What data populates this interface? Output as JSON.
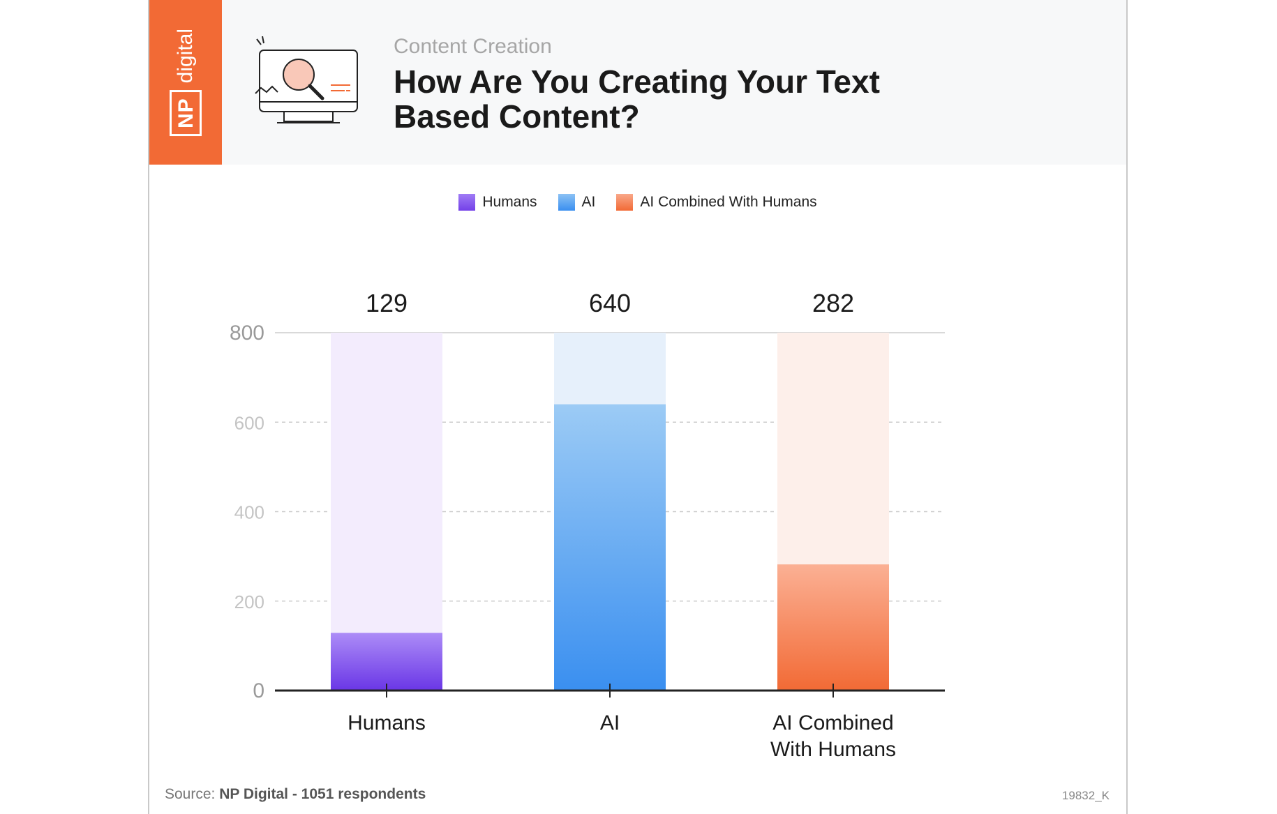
{
  "header": {
    "brand_np": "NP",
    "brand_word": "digital",
    "subtitle": "Content Creation",
    "title": "How Are You Creating Your Text Based Content?"
  },
  "legend": [
    {
      "label": "Humans",
      "icon": "purple-square-icon"
    },
    {
      "label": "AI",
      "icon": "blue-square-icon"
    },
    {
      "label": "AI Combined With Humans",
      "icon": "orange-square-icon"
    }
  ],
  "chart_data": {
    "type": "bar",
    "categories": [
      "Humans",
      "AI",
      "AI Combined With Humans"
    ],
    "values": [
      129,
      640,
      282
    ],
    "ylim": [
      0,
      800
    ],
    "yticks": [
      0,
      200,
      400,
      600,
      800
    ],
    "colors": [
      "#7b4df0",
      "#3a8ff0",
      "#f26a35"
    ],
    "grid": true,
    "legend_position": "top-center"
  },
  "footer": {
    "source_label": "Source:",
    "source_text": "NP Digital - 1051 respondents",
    "code": "19832_K"
  }
}
